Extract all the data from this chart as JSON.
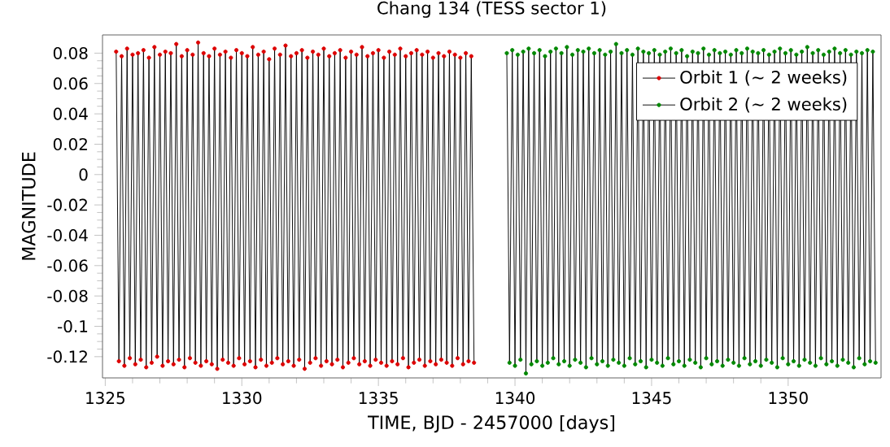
{
  "chart_data": {
    "type": "line",
    "title": "Chang 134 (TESS sector 1)",
    "xlabel": "TIME,  BJD - 2457000 [days]",
    "ylabel": "MAGNITUDE",
    "xlim": [
      1324.9,
      1353.4
    ],
    "ylim": [
      -0.134,
      0.092
    ],
    "xticks": [
      1325,
      1330,
      1335,
      1340,
      1345,
      1350
    ],
    "yticks": [
      -0.12,
      -0.1,
      -0.08,
      -0.06,
      -0.04,
      -0.02,
      0,
      0.02,
      0.04,
      0.06,
      0.08
    ],
    "marker": "circle",
    "line_style": "solid",
    "legend": "top right",
    "grid": false,
    "series": [
      {
        "name": "Orbit 1 (∼  2 weeks)",
        "color": "#dd0000",
        "x": [
          1325.4,
          1325.5,
          1325.6,
          1325.7,
          1325.8,
          1325.9,
          1326.0,
          1326.1,
          1326.2,
          1326.3,
          1326.4,
          1326.5,
          1326.6,
          1326.7,
          1326.8,
          1326.9,
          1327.0,
          1327.1,
          1327.2,
          1327.3,
          1327.4,
          1327.5,
          1327.6,
          1327.7,
          1327.8,
          1327.9,
          1328.0,
          1328.1,
          1328.2,
          1328.3,
          1328.4,
          1328.5,
          1328.6,
          1328.7,
          1328.8,
          1328.9,
          1329.0,
          1329.1,
          1329.2,
          1329.3,
          1329.4,
          1329.5,
          1329.6,
          1329.7,
          1329.8,
          1329.9,
          1330.0,
          1330.1,
          1330.2,
          1330.3,
          1330.4,
          1330.5,
          1330.6,
          1330.7,
          1330.8,
          1330.9,
          1331.0,
          1331.1,
          1331.2,
          1331.3,
          1331.4,
          1331.5,
          1331.6,
          1331.7,
          1331.8,
          1331.9,
          1332.0,
          1332.1,
          1332.2,
          1332.3,
          1332.4,
          1332.5,
          1332.6,
          1332.7,
          1332.8,
          1332.9,
          1333.0,
          1333.1,
          1333.2,
          1333.3,
          1333.4,
          1333.5,
          1333.6,
          1333.7,
          1333.8,
          1333.9,
          1334.0,
          1334.1,
          1334.2,
          1334.3,
          1334.4,
          1334.5,
          1334.6,
          1334.7,
          1334.8,
          1334.9,
          1335.0,
          1335.1,
          1335.2,
          1335.3,
          1335.4,
          1335.5,
          1335.6,
          1335.7,
          1335.8,
          1335.9,
          1336.0,
          1336.1,
          1336.2,
          1336.3,
          1336.4,
          1336.5,
          1336.6,
          1336.7,
          1336.8,
          1336.9,
          1337.0,
          1337.1,
          1337.2,
          1337.3,
          1337.4,
          1337.5,
          1337.6,
          1337.7,
          1337.8,
          1337.9,
          1338.0,
          1338.1,
          1338.2,
          1338.3,
          1338.4,
          1338.5
        ],
        "values": [
          0.081,
          -0.123,
          0.078,
          -0.126,
          0.083,
          -0.121,
          0.079,
          -0.125,
          0.08,
          -0.122,
          0.082,
          -0.127,
          0.077,
          -0.124,
          0.084,
          -0.12,
          0.079,
          -0.126,
          0.081,
          -0.123,
          0.08,
          -0.125,
          0.086,
          -0.122,
          0.078,
          -0.127,
          0.082,
          -0.121,
          0.079,
          -0.124,
          0.087,
          -0.126,
          0.08,
          -0.123,
          0.078,
          -0.125,
          0.083,
          -0.128,
          0.079,
          -0.122,
          0.081,
          -0.124,
          0.077,
          -0.126,
          0.082,
          -0.121,
          0.08,
          -0.125,
          0.078,
          -0.123,
          0.084,
          -0.127,
          0.079,
          -0.122,
          0.081,
          -0.126,
          0.076,
          -0.124,
          0.083,
          -0.121,
          0.079,
          -0.125,
          0.085,
          -0.123,
          0.078,
          -0.126,
          0.08,
          -0.122,
          0.082,
          -0.128,
          0.077,
          -0.124,
          0.081,
          -0.121,
          0.079,
          -0.126,
          0.083,
          -0.123,
          0.078,
          -0.125,
          0.08,
          -0.122,
          0.082,
          -0.127,
          0.077,
          -0.124,
          0.081,
          -0.121,
          0.079,
          -0.125,
          0.084,
          -0.123,
          0.078,
          -0.126,
          0.08,
          -0.122,
          0.082,
          -0.124,
          0.077,
          -0.126,
          0.081,
          -0.123,
          0.079,
          -0.125,
          0.083,
          -0.121,
          0.078,
          -0.127,
          0.08,
          -0.124,
          0.082,
          -0.122,
          0.079,
          -0.126,
          0.081,
          -0.123,
          0.077,
          -0.125,
          0.08,
          -0.122,
          0.078,
          -0.124,
          0.081,
          -0.126,
          0.079,
          -0.121,
          0.077,
          -0.125,
          0.08,
          -0.123,
          0.078,
          -0.124
        ]
      },
      {
        "name": "Orbit 2 (∼  2 weeks)",
        "color": "#008800",
        "x": [
          1339.7,
          1339.8,
          1339.9,
          1340.0,
          1340.1,
          1340.2,
          1340.3,
          1340.4,
          1340.5,
          1340.6,
          1340.7,
          1340.8,
          1340.9,
          1341.0,
          1341.1,
          1341.2,
          1341.3,
          1341.4,
          1341.5,
          1341.6,
          1341.7,
          1341.8,
          1341.9,
          1342.0,
          1342.1,
          1342.2,
          1342.3,
          1342.4,
          1342.5,
          1342.6,
          1342.7,
          1342.8,
          1342.9,
          1343.0,
          1343.1,
          1343.2,
          1343.3,
          1343.4,
          1343.5,
          1343.6,
          1343.7,
          1343.8,
          1343.9,
          1344.0,
          1344.1,
          1344.2,
          1344.3,
          1344.4,
          1344.5,
          1344.6,
          1344.7,
          1344.8,
          1344.9,
          1345.0,
          1345.1,
          1345.2,
          1345.3,
          1345.4,
          1345.5,
          1345.6,
          1345.7,
          1345.8,
          1345.9,
          1346.0,
          1346.1,
          1346.2,
          1346.3,
          1346.4,
          1346.5,
          1346.6,
          1346.7,
          1346.8,
          1346.9,
          1347.0,
          1347.1,
          1347.2,
          1347.3,
          1347.4,
          1347.5,
          1347.6,
          1347.7,
          1347.8,
          1347.9,
          1348.0,
          1348.1,
          1348.2,
          1348.3,
          1348.4,
          1348.5,
          1348.6,
          1348.7,
          1348.8,
          1348.9,
          1349.0,
          1349.1,
          1349.2,
          1349.3,
          1349.4,
          1349.5,
          1349.6,
          1349.7,
          1349.8,
          1349.9,
          1350.0,
          1350.1,
          1350.2,
          1350.3,
          1350.4,
          1350.5,
          1350.6,
          1350.7,
          1350.8,
          1350.9,
          1351.0,
          1351.1,
          1351.2,
          1351.3,
          1351.4,
          1351.5,
          1351.6,
          1351.7,
          1351.8,
          1351.9,
          1352.0,
          1352.1,
          1352.2,
          1352.3,
          1352.4,
          1352.5,
          1352.6,
          1352.7,
          1352.8,
          1352.9,
          1353.0,
          1353.1,
          1353.2
        ],
        "values": [
          0.08,
          -0.124,
          0.082,
          -0.126,
          0.079,
          -0.122,
          0.081,
          -0.131,
          0.083,
          -0.125,
          0.08,
          -0.123,
          0.082,
          -0.126,
          0.078,
          -0.124,
          0.081,
          -0.121,
          0.083,
          -0.125,
          0.08,
          -0.123,
          0.084,
          -0.126,
          0.079,
          -0.122,
          0.082,
          -0.124,
          0.081,
          -0.127,
          0.083,
          -0.121,
          0.08,
          -0.125,
          0.082,
          -0.123,
          0.079,
          -0.126,
          0.081,
          -0.122,
          0.086,
          -0.124,
          0.08,
          -0.126,
          0.082,
          -0.121,
          0.079,
          -0.125,
          0.083,
          -0.123,
          0.081,
          -0.127,
          0.08,
          -0.122,
          0.082,
          -0.124,
          0.079,
          -0.126,
          0.081,
          -0.121,
          0.083,
          -0.125,
          0.08,
          -0.123,
          0.082,
          -0.126,
          0.078,
          -0.122,
          0.081,
          -0.124,
          0.08,
          -0.127,
          0.083,
          -0.121,
          0.079,
          -0.125,
          0.082,
          -0.123,
          0.08,
          -0.126,
          0.081,
          -0.122,
          0.079,
          -0.124,
          0.082,
          -0.126,
          0.08,
          -0.121,
          0.083,
          -0.125,
          0.081,
          -0.123,
          0.08,
          -0.126,
          0.082,
          -0.122,
          0.079,
          -0.124,
          0.081,
          -0.127,
          0.083,
          -0.121,
          0.08,
          -0.125,
          0.082,
          -0.123,
          0.079,
          -0.126,
          0.081,
          -0.122,
          0.084,
          -0.124,
          0.08,
          -0.126,
          0.082,
          -0.121,
          0.079,
          -0.125,
          0.081,
          -0.123,
          0.083,
          -0.126,
          0.08,
          -0.122,
          0.082,
          -0.124,
          0.079,
          -0.127,
          0.081,
          -0.121,
          0.08,
          -0.125,
          0.082,
          -0.123,
          0.081,
          -0.124
        ]
      }
    ]
  }
}
